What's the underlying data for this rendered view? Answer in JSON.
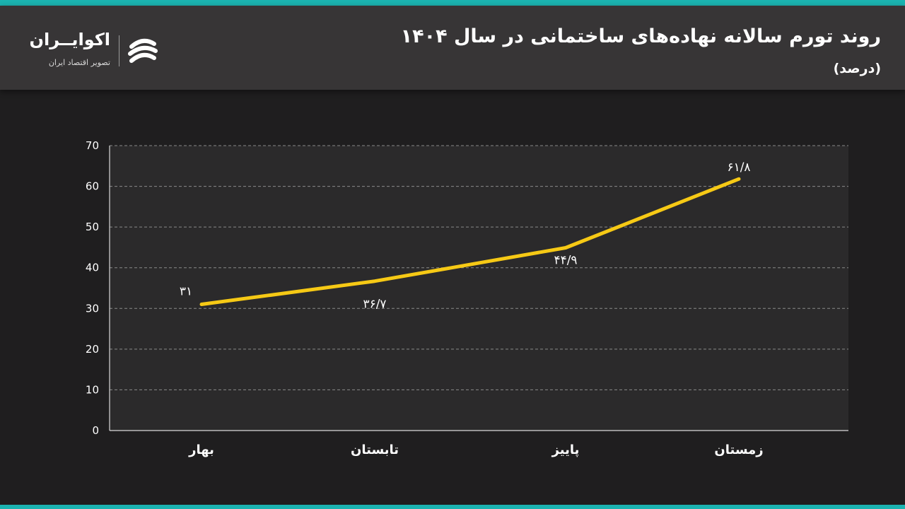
{
  "header": {
    "title": "روند تورم سالانه نهاده‌های ساختمانی در سال ۱۴۰۴",
    "subtitle": "(درصد)"
  },
  "brand": {
    "name": "اکوایــران",
    "tagline": "تصویر اقتصاد ایران",
    "logo_icon": "ecoiran-logo-icon"
  },
  "colors": {
    "accent": "#1bb3b0",
    "line": "#f6c915",
    "header_bg": "#373536",
    "page_bg": "#1f1e1f",
    "plot_bg": "#2b2a2b"
  },
  "chart_data": {
    "type": "line",
    "categories": [
      "بهار",
      "تابستان",
      "پاییز",
      "زمستان"
    ],
    "values": [
      31,
      36.7,
      44.9,
      61.8
    ],
    "value_labels": [
      "۳۱",
      "۳۶/۷",
      "۴۴/۹",
      "۶۱/۸"
    ],
    "y_ticks": [
      0,
      10,
      20,
      30,
      40,
      50,
      60,
      70
    ],
    "y_tick_labels": [
      "0",
      "10",
      "20",
      "30",
      "40",
      "50",
      "60",
      "70"
    ],
    "ylim": [
      0,
      70
    ],
    "grid": true,
    "legend": "none"
  }
}
